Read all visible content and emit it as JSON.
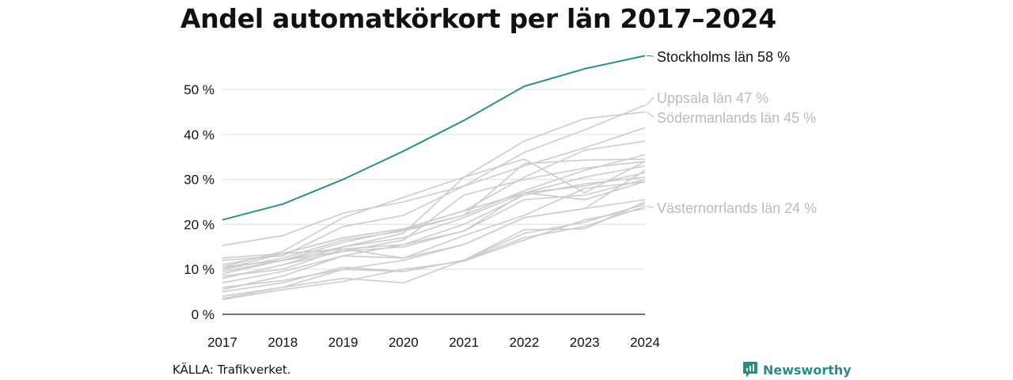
{
  "title": "Andel automatkörkort per län 2017–2024",
  "source": "KÄLLA: Trafikverket.",
  "brand": {
    "name": "Newsworthy",
    "icon": "newsworthy-logo-icon"
  },
  "colors": {
    "highlight": "#2a9088",
    "muted": "#cccccc",
    "label_muted": "#bbbbbb",
    "grid": "#e3e3e3",
    "axis": "#222222"
  },
  "chart_data": {
    "type": "line",
    "title": "Andel automatkörkort per län 2017–2024",
    "xlabel": "",
    "ylabel": "",
    "x": [
      "2017",
      "2018",
      "2019",
      "2020",
      "2021",
      "2022",
      "2023",
      "2024"
    ],
    "ylim": [
      0,
      58
    ],
    "yticks": [
      0,
      10,
      20,
      30,
      40,
      50
    ],
    "ytick_labels": [
      "0 %",
      "10 %",
      "20 %",
      "30 %",
      "40 %",
      "50 %"
    ],
    "grid": true,
    "legend": "direct labels at line ends (right)",
    "series": [
      {
        "name": "Stockholms län",
        "label": "Stockholms län 58 %",
        "highlight": true,
        "values": [
          21,
          24.5,
          30,
          36.3,
          43.1,
          50.7,
          54.6,
          57.5
        ]
      },
      {
        "name": "Uppsala län",
        "label": "Uppsala län 47 %",
        "values": [
          12,
          13,
          19.5,
          22,
          28.5,
          36,
          41,
          46.5
        ]
      },
      {
        "name": "Södermanlands län",
        "label": "Södermanlands län 45 %",
        "values": [
          10.5,
          14,
          21.5,
          26,
          30.5,
          38.5,
          43.5,
          45
        ]
      },
      {
        "name": "Västernorrlands län",
        "label": "Västernorrlands län 24 %",
        "values": [
          4,
          6,
          10,
          9.5,
          12,
          17,
          19.5,
          24
        ]
      },
      {
        "values": [
          15.3,
          17.5,
          22.5,
          25,
          28.5,
          33,
          37,
          41.5
        ]
      },
      {
        "values": [
          11,
          13.5,
          17,
          19,
          23,
          30.5,
          36.5,
          38.5
        ]
      },
      {
        "values": [
          10,
          12.5,
          16.5,
          18.5,
          22,
          27.5,
          32,
          35.5
        ]
      },
      {
        "values": [
          9,
          12,
          16,
          18.8,
          22,
          33.5,
          34.3,
          34.5
        ]
      },
      {
        "values": [
          8,
          11,
          15,
          18,
          30.5,
          34.5,
          27,
          34
        ]
      },
      {
        "values": [
          9.5,
          12,
          15,
          17,
          21.5,
          27,
          30.5,
          33
        ]
      },
      {
        "values": [
          10,
          13.5,
          17,
          19,
          23,
          27,
          28.5,
          31.5
        ]
      },
      {
        "values": [
          8.5,
          10,
          14.5,
          15.5,
          20,
          26.5,
          29,
          30.5
        ]
      },
      {
        "values": [
          8,
          11,
          14,
          15,
          18.5,
          25.5,
          26.5,
          30
        ]
      },
      {
        "values": [
          7,
          9.5,
          13,
          12.5,
          17.5,
          22,
          28,
          29.5
        ]
      },
      {
        "values": [
          5.5,
          8.5,
          13,
          15.5,
          18.5,
          27,
          25.5,
          29.5
        ]
      },
      {
        "values": [
          6,
          7.5,
          10,
          12,
          15.5,
          21.5,
          23.5,
          25.5
        ]
      },
      {
        "values": [
          3.5,
          6,
          8,
          7,
          12,
          18.8,
          19,
          25
        ]
      },
      {
        "values": [
          5,
          7,
          10.5,
          9.5,
          12,
          18,
          20.5,
          24.5
        ]
      },
      {
        "values": [
          3.3,
          5.5,
          7.3,
          10,
          11.8,
          16.5,
          21,
          23.5
        ]
      },
      {
        "values": [
          12.5,
          13.5,
          14.5,
          12.5,
          15.5,
          21.5,
          23.5,
          32
        ]
      },
      {
        "values": [
          10.5,
          12,
          14,
          16.5,
          26.5,
          30,
          32.5,
          34
        ]
      }
    ]
  }
}
